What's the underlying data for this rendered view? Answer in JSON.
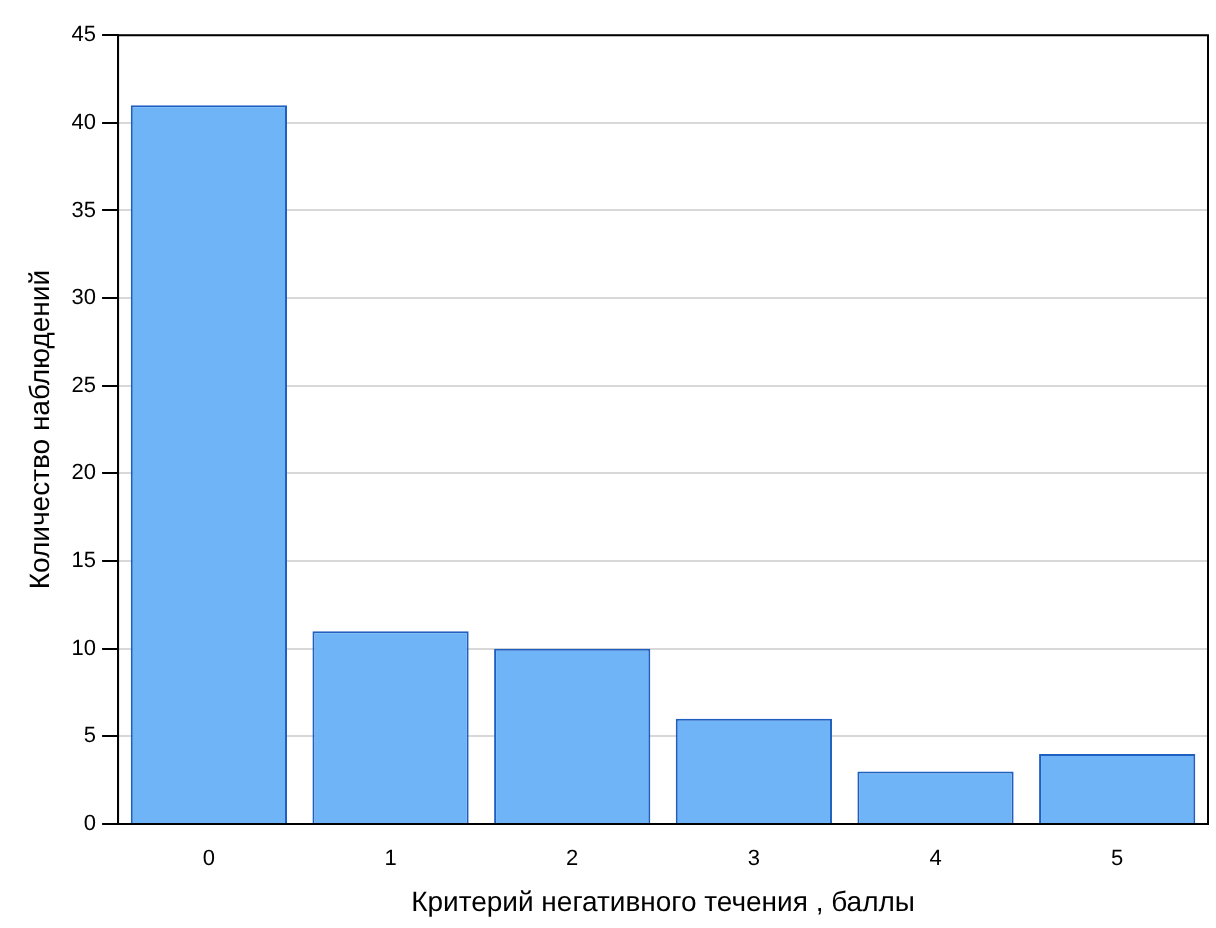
{
  "chart_data": {
    "type": "bar",
    "xlabel": "Критерий негативного течения , баллы",
    "ylabel": "Количество наблюдений",
    "categories": [
      "0",
      "1",
      "2",
      "3",
      "4",
      "5"
    ],
    "values": [
      41,
      11,
      10,
      6,
      3,
      4
    ],
    "color": "#6fb4f7",
    "ylim": [
      0,
      45
    ],
    "yticks": [
      0,
      5,
      10,
      15,
      20,
      25,
      30,
      35,
      40,
      45
    ],
    "grid": "y"
  }
}
